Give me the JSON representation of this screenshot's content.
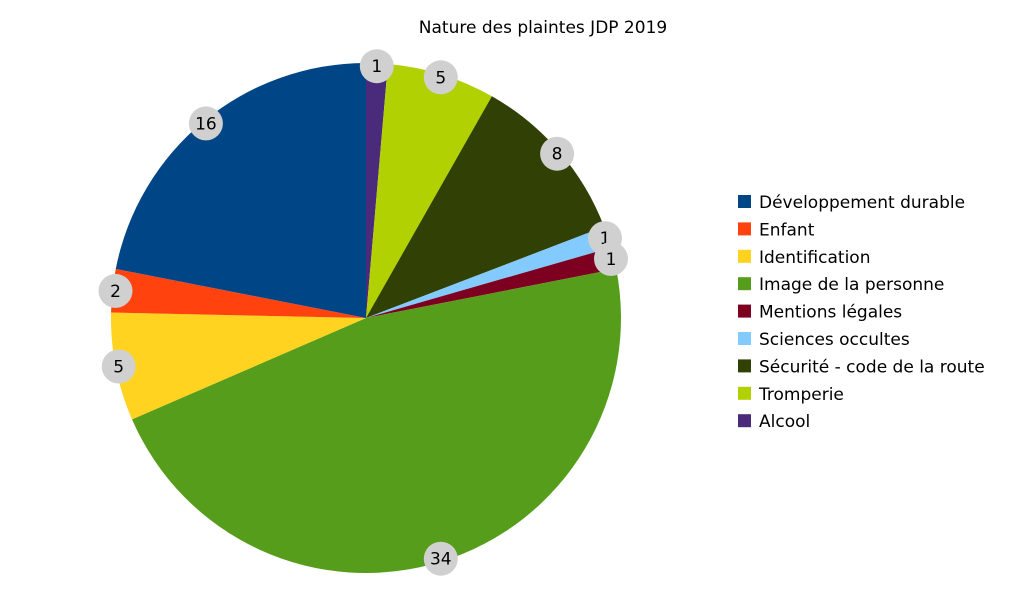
{
  "chart_data": {
    "type": "pie",
    "title": "Nature des plaintes JDP 2019",
    "slices": [
      {
        "label": "Alcool",
        "value": 1,
        "color": "#4a2a7a"
      },
      {
        "label": "Tromperie",
        "value": 5,
        "color": "#b2d102"
      },
      {
        "label": "Sécurité - code de la route",
        "value": 8,
        "color": "#314004"
      },
      {
        "label": "Sciences occultes",
        "value": 1,
        "color": "#83caff"
      },
      {
        "label": "Mentions légales",
        "value": 1,
        "color": "#7e0021"
      },
      {
        "label": "Image de la personne",
        "value": 34,
        "color": "#579d1c"
      },
      {
        "label": "Identification",
        "value": 5,
        "color": "#ffd320"
      },
      {
        "label": "Enfant",
        "value": 2,
        "color": "#ff420e"
      },
      {
        "label": "Développement durable",
        "value": 16,
        "color": "#004586"
      }
    ],
    "legend": {
      "position": "right",
      "items": [
        "Développement durable",
        "Enfant",
        "Identification",
        "Image de la personne",
        "Mentions légales",
        "Sciences occultes",
        "Sécurité - code de la route",
        "Tromperie",
        "Alcool"
      ]
    },
    "data_label_style": "gray-circle"
  }
}
